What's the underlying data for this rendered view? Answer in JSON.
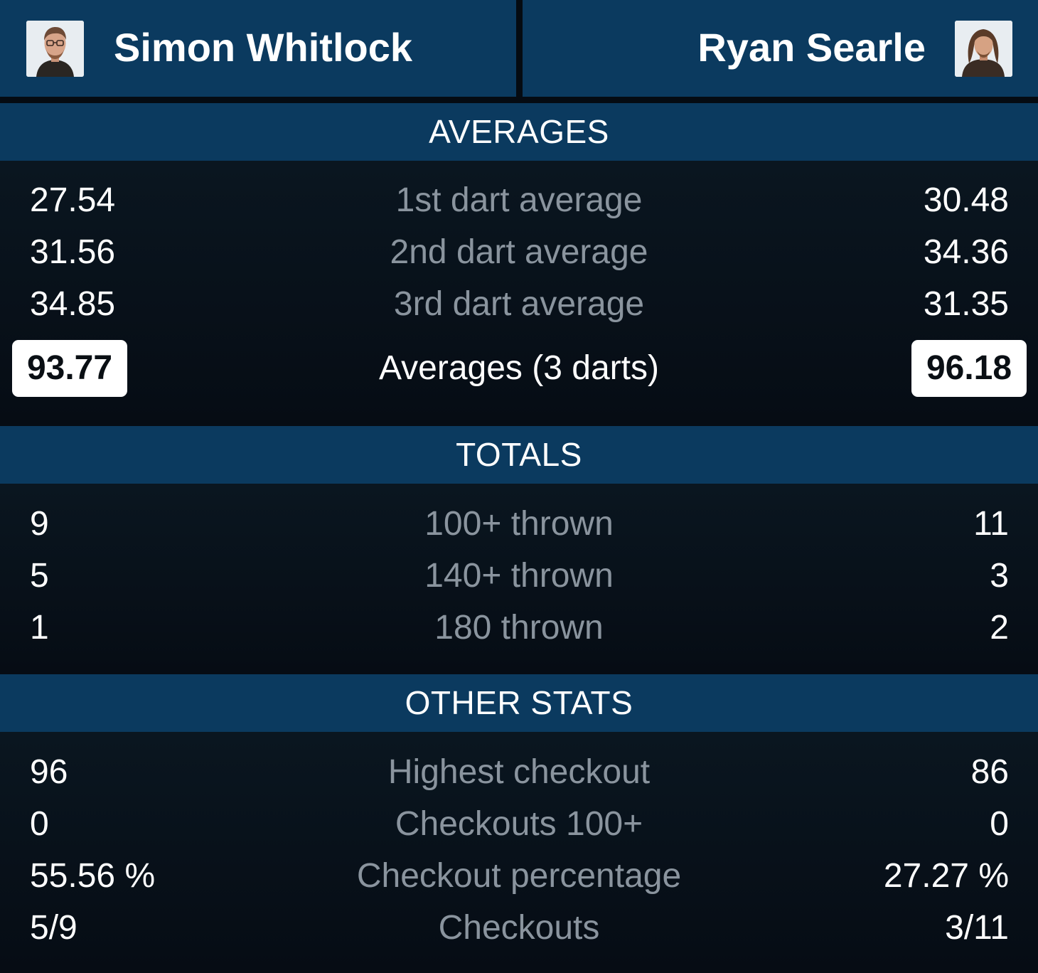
{
  "players": {
    "left": {
      "name": "Simon Whitlock",
      "avatar_icon": "player-photo-icon"
    },
    "right": {
      "name": "Ryan Searle",
      "avatar_icon": "player-photo-icon"
    }
  },
  "sections": {
    "averages": {
      "title": "AVERAGES",
      "rows": [
        {
          "label": "1st dart average",
          "left": "27.54",
          "right": "30.48"
        },
        {
          "label": "2nd dart average",
          "left": "31.56",
          "right": "34.36"
        },
        {
          "label": "3rd dart average",
          "left": "34.85",
          "right": "31.35"
        }
      ],
      "total": {
        "label": "Averages (3 darts)",
        "left": "93.77",
        "right": "96.18"
      }
    },
    "totals": {
      "title": "TOTALS",
      "rows": [
        {
          "label": "100+ thrown",
          "left": "9",
          "right": "11"
        },
        {
          "label": "140+ thrown",
          "left": "5",
          "right": "3"
        },
        {
          "label": "180 thrown",
          "left": "1",
          "right": "2"
        }
      ]
    },
    "other": {
      "title": "OTHER STATS",
      "rows": [
        {
          "label": "Highest checkout",
          "left": "96",
          "right": "86"
        },
        {
          "label": "Checkouts 100+",
          "left": "0",
          "right": "0"
        },
        {
          "label": "Checkout percentage",
          "left": "55.56 %",
          "right": "27.27 %"
        },
        {
          "label": "Checkouts",
          "left": "5/9",
          "right": "3/11"
        }
      ]
    }
  },
  "colors": {
    "header_blue": "#0b3a5f",
    "background": "#050b12",
    "label_gray": "#8a949e"
  }
}
